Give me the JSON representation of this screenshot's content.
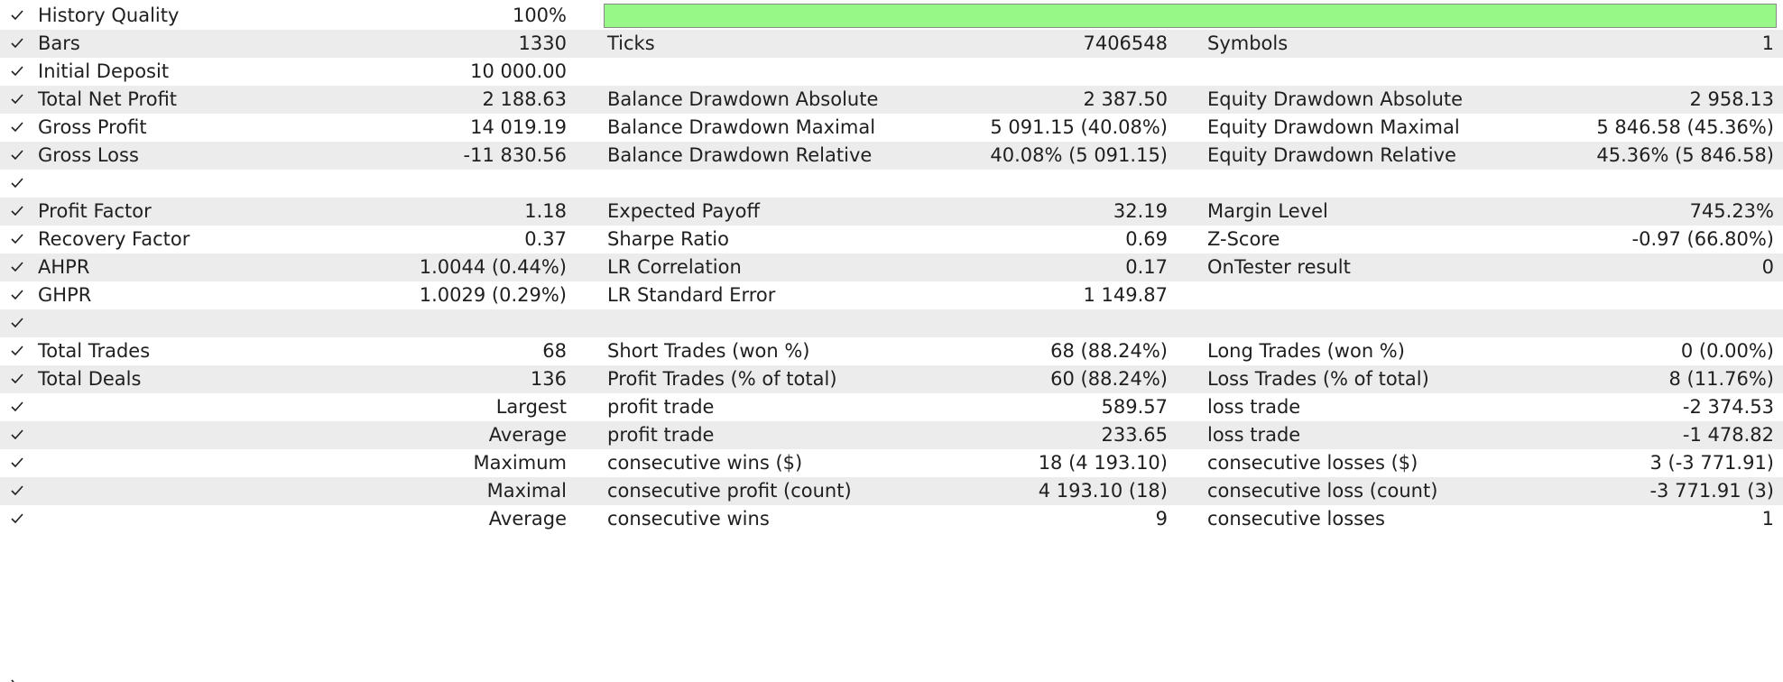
{
  "colors": {
    "row_alternate": "#ececec",
    "quality_bar_fill": "#98f887",
    "text": "#1f1f1f"
  },
  "history_quality": {
    "label": "History Quality",
    "value": "100%",
    "bar_fraction": 1.0
  },
  "rows": [
    {
      "c1_label": "Bars",
      "c1_value": "1330",
      "c2_label": "Ticks",
      "c2_value": "7406548",
      "c3_label": "Symbols",
      "c3_value": "1"
    },
    {
      "c1_label": "Initial Deposit",
      "c1_value": "10 000.00"
    },
    {
      "c1_label": "Total Net Profit",
      "c1_value": "2 188.63",
      "c2_label": "Balance Drawdown Absolute",
      "c2_value": "2 387.50",
      "c3_label": "Equity Drawdown Absolute",
      "c3_value": "2 958.13"
    },
    {
      "c1_label": "Gross Profit",
      "c1_value": "14 019.19",
      "c2_label": "Balance Drawdown Maximal",
      "c2_value": "5 091.15 (40.08%)",
      "c3_label": "Equity Drawdown Maximal",
      "c3_value": "5 846.58 (45.36%)"
    },
    {
      "c1_label": "Gross Loss",
      "c1_value": "-11 830.56",
      "c2_label": "Balance Drawdown Relative",
      "c2_value": "40.08% (5 091.15)",
      "c3_label": "Equity Drawdown Relative",
      "c3_value": "45.36% (5 846.58)"
    },
    {},
    {
      "c1_label": "Profit Factor",
      "c1_value": "1.18",
      "c2_label": "Expected Payoff",
      "c2_value": "32.19",
      "c3_label": "Margin Level",
      "c3_value": "745.23%"
    },
    {
      "c1_label": "Recovery Factor",
      "c1_value": "0.37",
      "c2_label": "Sharpe Ratio",
      "c2_value": "0.69",
      "c3_label": "Z-Score",
      "c3_value": "-0.97 (66.80%)"
    },
    {
      "c1_label": "AHPR",
      "c1_value": "1.0044 (0.44%)",
      "c2_label": "LR Correlation",
      "c2_value": "0.17",
      "c3_label": "OnTester result",
      "c3_value": "0"
    },
    {
      "c1_label": "GHPR",
      "c1_value": "1.0029 (0.29%)",
      "c2_label": "LR Standard Error",
      "c2_value": "1 149.87"
    },
    {},
    {
      "c1_label": "Total Trades",
      "c1_value": "68",
      "c2_label": "Short Trades (won %)",
      "c2_value": "68 (88.24%)",
      "c3_label": "Long Trades (won %)",
      "c3_value": "0 (0.00%)"
    },
    {
      "c1_label": "Total Deals",
      "c1_value": "136",
      "c2_label": "Profit Trades (% of total)",
      "c2_value": "60 (88.24%)",
      "c3_label": "Loss Trades (% of total)",
      "c3_value": "8 (11.76%)"
    },
    {
      "c1_right_label": "Largest",
      "c2_label": "profit trade",
      "c2_value": "589.57",
      "c3_label": "loss trade",
      "c3_value": "-2 374.53"
    },
    {
      "c1_right_label": "Average",
      "c2_label": "profit trade",
      "c2_value": "233.65",
      "c3_label": "loss trade",
      "c3_value": "-1 478.82"
    },
    {
      "c1_right_label": "Maximum",
      "c2_label": "consecutive wins ($)",
      "c2_value": "18 (4 193.10)",
      "c3_label": "consecutive losses ($)",
      "c3_value": "3 (-3 771.91)"
    },
    {
      "c1_right_label": "Maximal",
      "c2_label": "consecutive profit (count)",
      "c2_value": "4 193.10 (18)",
      "c3_label": "consecutive loss (count)",
      "c3_value": "-3 771.91 (3)"
    },
    {
      "c1_right_label": "Average",
      "c2_label": "consecutive wins",
      "c2_value": "9",
      "c3_label": "consecutive losses",
      "c3_value": "1"
    }
  ]
}
